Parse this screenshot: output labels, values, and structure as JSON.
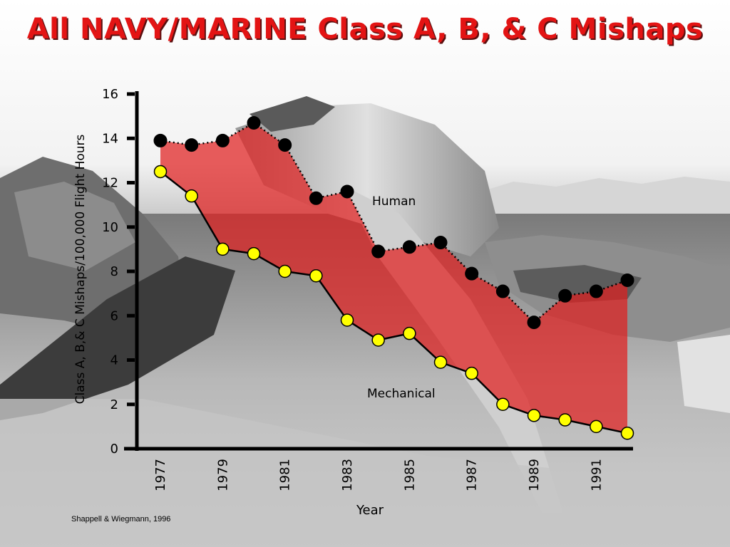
{
  "title": "All NAVY/MARINE Class A, B, & C Mishaps",
  "citation": "Shappell & Wiegmann, 1996",
  "colors": {
    "title": "#e31414",
    "band_fill": "#e02020",
    "human_marker": "#000000",
    "mechanical_marker": "#ffff00"
  },
  "chart_data": {
    "type": "area",
    "title": "All NAVY/MARINE Class A, B, & C Mishaps",
    "xlabel": "Year",
    "ylabel": "Class A, B,& C Mishaps/100,000 Flight Hours",
    "ylim": [
      0,
      16
    ],
    "xlim": [
      1977,
      1992
    ],
    "y_ticks": [
      "0",
      "2",
      "4",
      "6",
      "8",
      "10",
      "12",
      "14",
      "16"
    ],
    "x_tick_labels": [
      "1977",
      "1979",
      "1981",
      "1983",
      "1985",
      "1987",
      "1989",
      "1991"
    ],
    "x": [
      1977,
      1978,
      1979,
      1980,
      1981,
      1982,
      1983,
      1984,
      1985,
      1986,
      1987,
      1988,
      1989,
      1990,
      1991,
      1992
    ],
    "series": [
      {
        "name": "Human",
        "marker": "black",
        "line": "dotted",
        "values": [
          13.9,
          13.7,
          13.9,
          14.7,
          13.7,
          11.3,
          11.6,
          8.9,
          9.1,
          9.3,
          7.9,
          7.1,
          5.7,
          6.9,
          7.1,
          7.6
        ]
      },
      {
        "name": "Mechanical",
        "marker": "yellow",
        "line": "solid",
        "values": [
          12.5,
          11.4,
          9.0,
          8.8,
          8.0,
          7.8,
          5.8,
          4.9,
          5.2,
          3.9,
          3.4,
          2.0,
          1.5,
          1.3,
          1.0,
          0.7
        ]
      }
    ],
    "annotations": [
      "Human",
      "Mechanical"
    ],
    "grid": false
  }
}
